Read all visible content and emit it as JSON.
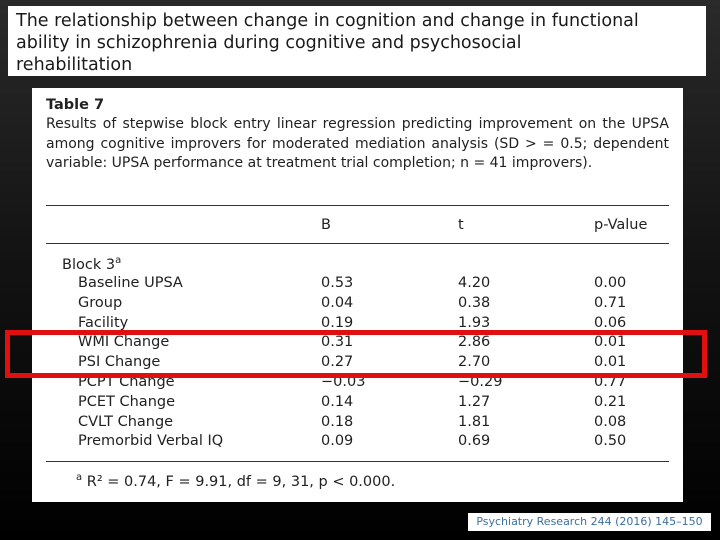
{
  "slide": {
    "title_lines": [
      "The relationship between change in cognition and change in functional",
      "ability in schizophrenia during cognitive and psychosocial",
      "rehabilitation"
    ],
    "citation": "Psychiatry Research 244 (2016) 145–150",
    "highlight_color": "#e01010"
  },
  "table": {
    "label": "Table 7",
    "caption": "Results of stepwise block entry linear regression predicting improvement on the UPSA among cognitive improvers for moderated mediation analysis (SD > = 0.5; dependent variable: UPSA performance at treatment trial completion; n = 41 improvers).",
    "columns": [
      "B",
      "t",
      "p-Value"
    ],
    "block_label": "Block 3",
    "block_sup": "a",
    "rows": [
      {
        "name": "Baseline UPSA",
        "B": "0.53",
        "t": "4.20",
        "p": "0.00"
      },
      {
        "name": "Group",
        "B": "0.04",
        "t": "0.38",
        "p": "0.71"
      },
      {
        "name": "Facility",
        "B": "0.19",
        "t": "1.93",
        "p": "0.06"
      },
      {
        "name": "WMI Change",
        "B": "0.31",
        "t": "2.86",
        "p": "0.01"
      },
      {
        "name": "PSI Change",
        "B": "0.27",
        "t": "2.70",
        "p": "0.01"
      },
      {
        "name": "PCPT Change",
        "B": "−0.03",
        "t": "−0.29",
        "p": "0.77"
      },
      {
        "name": "PCET Change",
        "B": "0.14",
        "t": "1.27",
        "p": "0.21"
      },
      {
        "name": "CVLT Change",
        "B": "0.18",
        "t": "1.81",
        "p": "0.08"
      },
      {
        "name": "Premorbid Verbal IQ",
        "B": "0.09",
        "t": "0.69",
        "p": "0.50"
      }
    ],
    "footnote_sup": "a",
    "footnote": "R² = 0.74, F = 9.91, df = 9, 31, p < 0.000."
  }
}
